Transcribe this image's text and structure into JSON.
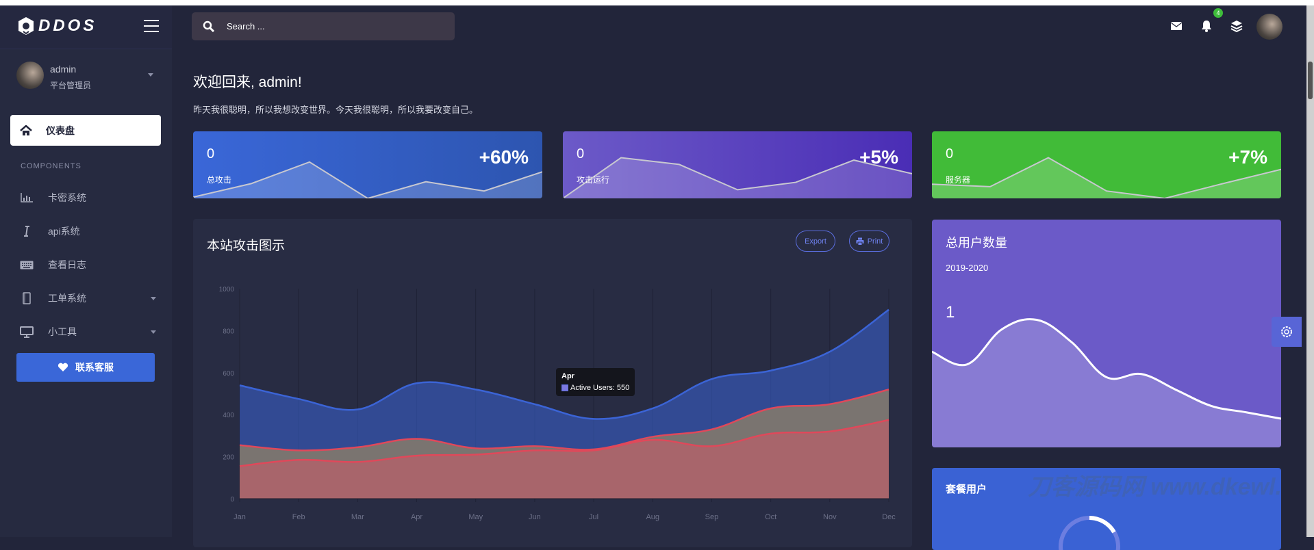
{
  "brand": {
    "name": "DDOS"
  },
  "search": {
    "placeholder": "Search ..."
  },
  "header": {
    "notification_count": "4",
    "icons": [
      "envelope-icon",
      "bell-icon",
      "layers-icon",
      "avatar"
    ]
  },
  "user": {
    "name": "admin",
    "role": "平台管理员"
  },
  "sidebar": {
    "active": "仪表盘",
    "section": "COMPONENTS",
    "items": [
      {
        "label": "卡密系统",
        "icon": "bar-chart-icon"
      },
      {
        "label": "api系统",
        "icon": "i-cursor-icon"
      },
      {
        "label": "查看日志",
        "icon": "keyboard-icon"
      },
      {
        "label": "工单系统",
        "icon": "notebook-icon",
        "has_submenu": true
      },
      {
        "label": "小工具",
        "icon": "monitor-icon",
        "has_submenu": true
      }
    ],
    "support_button": "联系客服"
  },
  "welcome": {
    "title": "欢迎回来, admin!",
    "motto": "昨天我很聪明，所以我想改变世界。今天我很聪明，所以我要改变自己。"
  },
  "stats": [
    {
      "value": "0",
      "label": "总攻击",
      "change": "+60%",
      "color": "#3a67d8",
      "sparkline": [
        2,
        24,
        59,
        0,
        27,
        12,
        43
      ]
    },
    {
      "value": "0",
      "label": "攻击运行",
      "change": "+5%",
      "color": "#6a55c8",
      "sparkline": [
        0,
        66,
        55,
        14,
        26,
        62,
        40
      ]
    },
    {
      "value": "0",
      "label": "服务器",
      "change": "+7%",
      "color": "#41bb38",
      "sparkline": [
        23,
        19,
        66,
        12,
        0,
        24,
        47
      ]
    }
  ],
  "attack_chart": {
    "title": "本站攻击图示",
    "export": "Export",
    "print": "Print",
    "tooltip": {
      "title": "Apr",
      "label": "Active Users: 550"
    }
  },
  "chart_data": {
    "type": "area",
    "categories": [
      "Jan",
      "Feb",
      "Mar",
      "Apr",
      "May",
      "Jun",
      "Jul",
      "Aug",
      "Sep",
      "Oct",
      "Nov",
      "Dec"
    ],
    "ylim": [
      0,
      1000
    ],
    "yticks": [
      "0",
      "200",
      "400",
      "600",
      "800",
      "1000"
    ],
    "grid": "vertical",
    "series": [
      {
        "name": "Active Users",
        "color": "#3b64d6",
        "values": [
          540,
          475,
          425,
          550,
          520,
          450,
          380,
          430,
          570,
          610,
          700,
          900
        ]
      },
      {
        "color": "#7a7470",
        "values": [
          255,
          230,
          245,
          285,
          240,
          250,
          235,
          295,
          330,
          430,
          450,
          520
        ]
      },
      {
        "color": "#e0485a",
        "values": [
          155,
          185,
          175,
          205,
          210,
          230,
          230,
          280,
          250,
          310,
          320,
          375
        ]
      }
    ]
  },
  "users_card": {
    "title": "总用户数量",
    "period": "2019-2020",
    "value": "1",
    "sparkline": [
      60,
      52,
      74,
      80,
      66,
      44,
      46,
      36,
      26,
      22,
      18
    ]
  },
  "package_card": {
    "title": "套餐用户"
  },
  "watermark": "刀客源码网 www.dkewl.com"
}
